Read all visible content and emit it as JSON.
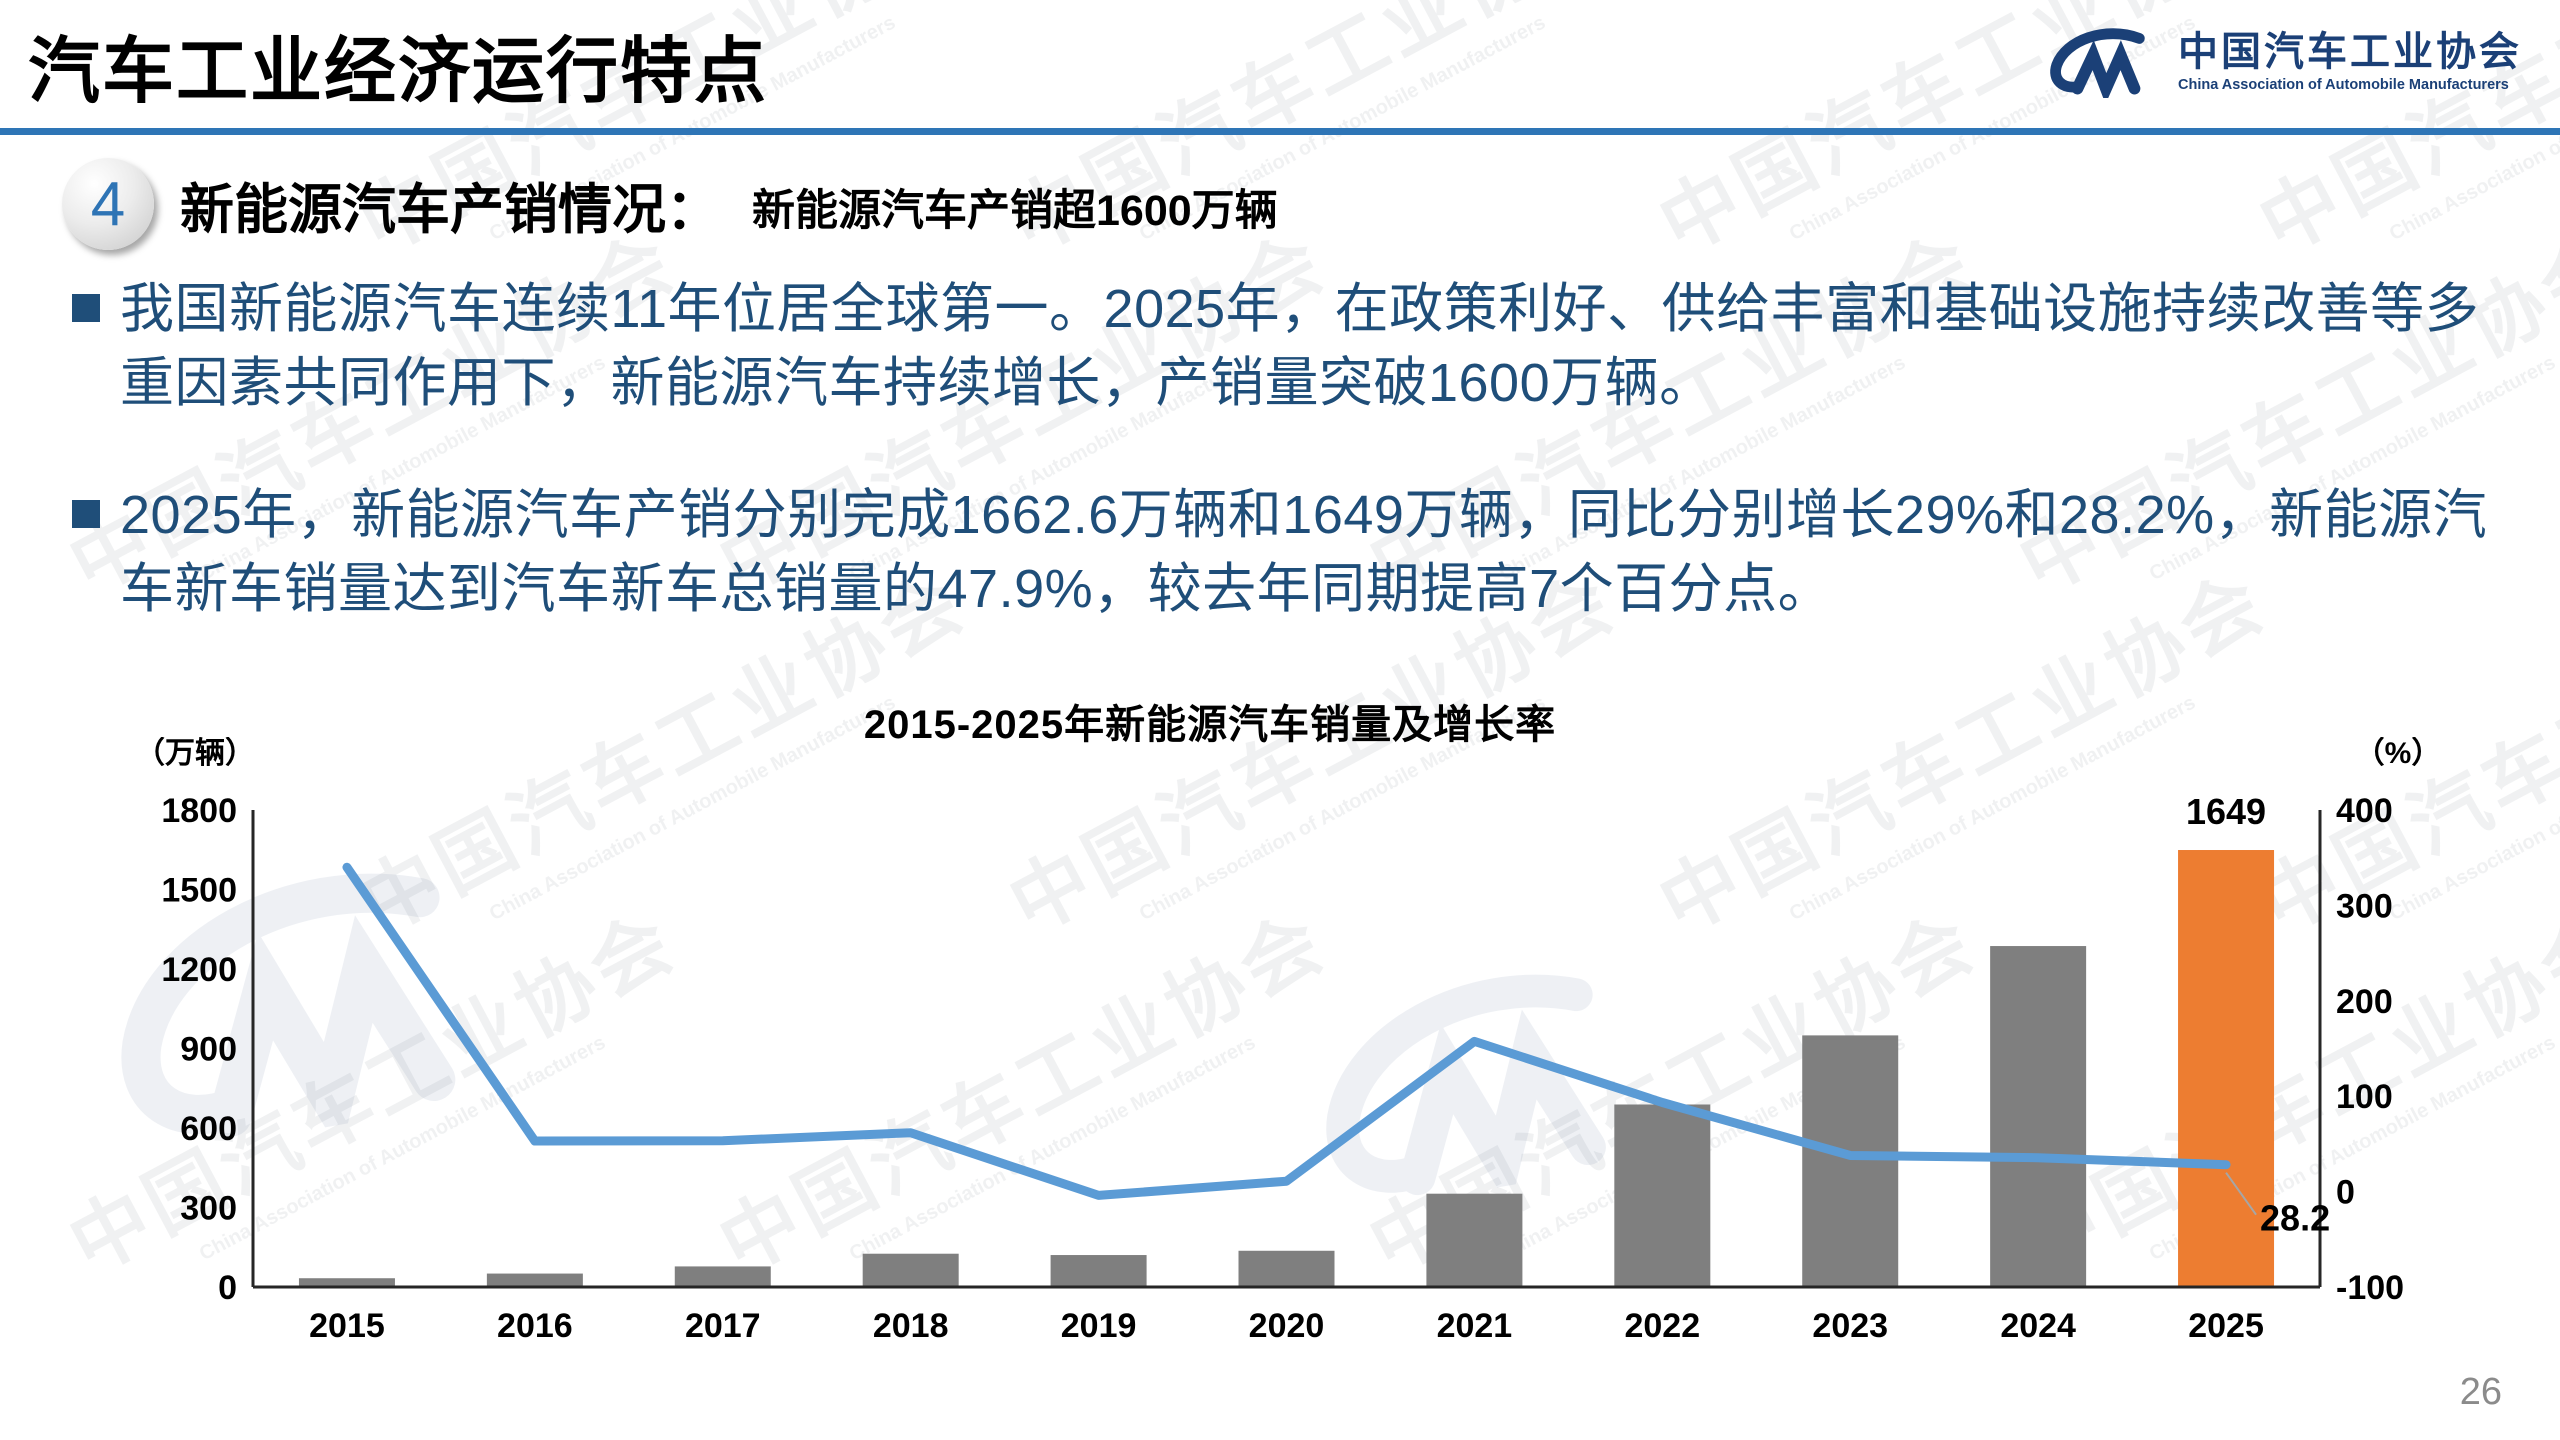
{
  "header": {
    "title": "汽车工业经济运行特点",
    "logo": {
      "cn": "中国汽车工业协会",
      "en": "China Association of Automobile Manufacturers"
    }
  },
  "section": {
    "number": "4",
    "heading": "新能源汽车产销情况：",
    "subheading": "新能源汽车产销超1600万辆"
  },
  "bullets": [
    {
      "text": "我国新能源汽车连续11年位居全球第一。2025年，在政策利好、供给丰富和基础设施持续改善等多重因素共同作用下，新能源汽车持续增长，产销量突破1600万辆。"
    },
    {
      "text": "2025年，新能源汽车产销分别完成1662.6万辆和1649万辆，同比分别增长29%和28.2%，新能源汽车新车销量达到汽车新车总销量的47.9%，较去年同期提高7个百分点。"
    }
  ],
  "chart_data": {
    "type": "combo",
    "title": "2015-2025年新能源汽车销量及增长率",
    "categories": [
      "2015",
      "2016",
      "2017",
      "2018",
      "2019",
      "2020",
      "2021",
      "2022",
      "2023",
      "2024",
      "2025"
    ],
    "series": [
      {
        "name": "新能源汽车销量",
        "type": "bar",
        "axis": "left",
        "values": [
          33.1,
          50.7,
          77.7,
          125.6,
          120.6,
          136.7,
          352.1,
          688.7,
          949.5,
          1286.6,
          1649
        ]
      },
      {
        "name": "增长率",
        "type": "line",
        "axis": "right",
        "values": [
          340,
          53,
          53.3,
          61.7,
          -4,
          10.9,
          157.5,
          93.4,
          37.9,
          35.5,
          28.2
        ]
      }
    ],
    "left_axis": {
      "label": "（万辆）",
      "range": [
        0,
        1800
      ],
      "ticks": [
        1800,
        1500,
        1200,
        900,
        600,
        300,
        0
      ]
    },
    "right_axis": {
      "label": "（%）",
      "range": [
        -100,
        400
      ],
      "ticks": [
        400,
        300,
        200,
        100,
        0,
        -100
      ]
    },
    "highlight_index": 10,
    "data_labels": {
      "bar_last": "1649",
      "line_last": "28.2"
    },
    "grid": false,
    "legend": "none",
    "colors": {
      "bar": "#7F7F7F",
      "bar_highlight": "#ED7D31",
      "line": "#5B9BD5",
      "axis": "#262626"
    }
  },
  "footer": {
    "page_number": "26"
  },
  "watermark": {
    "cn": "中国汽车工业协会",
    "en": "China Association of Automobile Manufacturers"
  },
  "colors": {
    "accent_blue": "#2E75B6",
    "text_blue": "#1F4E79",
    "logo_navy": "#1b4077",
    "badge_number_blue": "#2E74B5"
  }
}
